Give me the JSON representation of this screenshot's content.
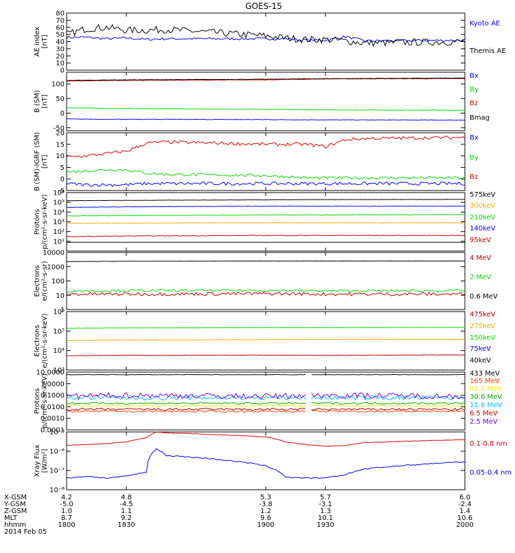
{
  "figure": {
    "title": "GOES-15",
    "date_label": "2014 Feb 05"
  },
  "x_axis": {
    "range": [
      1800,
      2000
    ],
    "ticks_hhmm": [
      "1800",
      "1830",
      "1900",
      "1930",
      "2000"
    ],
    "rows": [
      {
        "label": "X-GSM",
        "values": [
          "4.2",
          "4.8",
          "5.3",
          "5.7",
          "6.0"
        ]
      },
      {
        "label": "Y-GSM",
        "values": [
          "-5.0",
          "-4.5",
          "-3.8",
          "-3.1",
          "-2.4"
        ]
      },
      {
        "label": "Z-GSM",
        "values": [
          "1.0",
          "1.1",
          "1.2",
          "1.3",
          "1.4"
        ]
      },
      {
        "label": "MLT",
        "values": [
          "8.7",
          "9.2",
          "9.6",
          "10.1",
          "10.6"
        ]
      },
      {
        "label": "hhmm",
        "values": [
          "1800",
          "1830",
          "1900",
          "1930",
          "2000"
        ]
      }
    ]
  },
  "colors": {
    "black": "#000000",
    "blue": "#0000ff",
    "green": "#00dd00",
    "red": "#dd0000",
    "orange": "#ffaa00",
    "yellow": "#eeee00",
    "cyan": "#00bbff",
    "purple": "#7700cc",
    "darkred": "#bb0000",
    "orangered": "#ff4400",
    "darkgreen": "#00aa00"
  },
  "chart_data": [
    {
      "type": "line",
      "ylabel": [
        "AE index",
        "[nT]"
      ],
      "scale": "linear",
      "ylim": [
        0,
        80
      ],
      "yticks": [
        {
          "v": 0,
          "t": "0"
        },
        {
          "v": 10,
          "t": "10"
        },
        {
          "v": 20,
          "t": "20"
        },
        {
          "v": 30,
          "t": "30"
        },
        {
          "v": 40,
          "t": "40"
        },
        {
          "v": 50,
          "t": "50"
        },
        {
          "v": 60,
          "t": "60"
        },
        {
          "v": 70,
          "t": "70"
        },
        {
          "v": 80,
          "t": "80"
        }
      ],
      "x": [
        1800,
        1810,
        1820,
        1830,
        1840,
        1850,
        1900,
        1910,
        1920,
        1930,
        1940,
        1950,
        2000
      ],
      "series": [
        {
          "name": "Kyoto AE",
          "color": "blue",
          "values": [
            46,
            46,
            44,
            45,
            43,
            44,
            44,
            44,
            42,
            42,
            47,
            41,
            42
          ],
          "noise": 0.9
        },
        {
          "name": "Themis AE",
          "color": "black",
          "values": [
            50,
            58,
            60,
            56,
            56,
            57,
            48,
            45,
            43,
            43,
            41,
            38,
            40
          ],
          "noise": 2.5
        }
      ]
    },
    {
      "type": "line",
      "ylabel": [
        "B (SM)",
        "[nT]"
      ],
      "scale": "linear",
      "ylim": [
        -60,
        140
      ],
      "yticks": [
        {
          "v": -50,
          "t": "-50"
        },
        {
          "v": 0,
          "t": "0"
        },
        {
          "v": 50,
          "t": "50"
        },
        {
          "v": 100,
          "t": "100"
        }
      ],
      "x": [
        1800,
        1830,
        1900,
        1930,
        2000
      ],
      "series": [
        {
          "name": "Bx",
          "color": "blue",
          "values": [
            -20,
            -21,
            -22,
            -23,
            -24
          ],
          "noise": 0.4
        },
        {
          "name": "By",
          "color": "green",
          "values": [
            18,
            16,
            13,
            11,
            10
          ],
          "noise": 0.4
        },
        {
          "name": "Bz",
          "color": "red",
          "values": [
            110,
            112,
            114,
            117,
            118
          ],
          "noise": 0.3
        },
        {
          "name": "Bmag",
          "color": "black",
          "values": [
            112,
            114,
            116,
            118,
            120
          ],
          "noise": 0.3
        }
      ]
    },
    {
      "type": "line",
      "ylabel": [
        "B (SM)-IGRF (SM)",
        "[nT]"
      ],
      "scale": "linear",
      "ylim": [
        -5,
        20
      ],
      "yticks": [
        {
          "v": -5,
          "t": "-5"
        },
        {
          "v": 0,
          "t": "0"
        },
        {
          "v": 5,
          "t": "5"
        },
        {
          "v": 10,
          "t": "10"
        },
        {
          "v": 15,
          "t": "15"
        },
        {
          "v": 20,
          "t": "20"
        }
      ],
      "x": [
        1800,
        1810,
        1820,
        1830,
        1840,
        1850,
        1900,
        1910,
        1920,
        1930,
        1940,
        1950,
        2000
      ],
      "series": [
        {
          "name": "Bx",
          "color": "blue",
          "values": [
            -2,
            -2.5,
            -2.5,
            -2.5,
            -2,
            -2,
            -2,
            -2,
            -2,
            -2,
            -2,
            -2,
            -2
          ],
          "noise": 0.35
        },
        {
          "name": "By",
          "color": "green",
          "values": [
            3,
            3.5,
            4,
            4,
            2.5,
            2,
            1.5,
            1,
            0.5,
            0.5,
            0.5,
            0.5,
            0.5
          ],
          "noise": 0.3
        },
        {
          "name": "Bz",
          "color": "red",
          "values": [
            9.5,
            10,
            11,
            12,
            15.5,
            16,
            15,
            15,
            15,
            14,
            17,
            17.5,
            18
          ],
          "noise": 0.35
        }
      ]
    },
    {
      "type": "line",
      "ylabel": [
        "Protons",
        "p/(cm²-s-sr-keV)"
      ],
      "scale": "log",
      "ylim": [
        1,
        1000000
      ],
      "yticks": [
        {
          "v": 10,
          "t": "10¹"
        },
        {
          "v": 100,
          "t": "10²"
        },
        {
          "v": 1000,
          "t": "10³"
        },
        {
          "v": 10000,
          "t": "10⁴"
        },
        {
          "v": 100000,
          "t": "10⁵"
        },
        {
          "v": 1000000,
          "t": "10⁶"
        }
      ],
      "x": [
        1800,
        1830,
        1900,
        1930,
        2000
      ],
      "series": [
        {
          "name": "575keV",
          "color": "black",
          "values": [
            8,
            8,
            8,
            8,
            8
          ],
          "noise": 0
        },
        {
          "name": "300keV",
          "color": "orange",
          "values": [
            700,
            750,
            800,
            800,
            800
          ],
          "noise": 0.02
        },
        {
          "name": "210keV",
          "color": "green",
          "values": [
            4000,
            4500,
            5000,
            5000,
            5500
          ],
          "noise": 0.02
        },
        {
          "name": "140keV",
          "color": "blue",
          "values": [
            30000,
            35000,
            40000,
            40000,
            40000
          ],
          "noise": 0.02
        },
        {
          "name": "95keV",
          "color": "darkred",
          "values": [
            30,
            35,
            40,
            40,
            40
          ],
          "noise": 0.03
        }
      ],
      "extra_series": [
        {
          "color": "black",
          "values": [
            150000,
            160000,
            180000,
            190000,
            200000
          ],
          "noise": 0.01
        }
      ]
    },
    {
      "type": "line",
      "ylabel": [
        "Electrons",
        "e/(cm²-s-sr)"
      ],
      "scale": "log",
      "ylim": [
        1,
        10000
      ],
      "yticks": [
        {
          "v": 1,
          "t": "1"
        },
        {
          "v": 10,
          "t": "10"
        },
        {
          "v": 100,
          "t": "100"
        },
        {
          "v": 1000,
          "t": "1000"
        },
        {
          "v": 10000,
          "t": "10000"
        }
      ],
      "x": [
        1800,
        1830,
        1900,
        1930,
        2000
      ],
      "series": [
        {
          "name": "4 MeV",
          "color": "darkred",
          "values": [
            12,
            12,
            13,
            12,
            12
          ],
          "noise": 0.12
        },
        {
          "name": "2 MeV",
          "color": "green",
          "values": [
            20,
            21,
            22,
            20,
            21
          ],
          "noise": 0.08
        },
        {
          "name": "0.6 MeV",
          "color": "black",
          "values": [
            2300,
            2400,
            2500,
            2500,
            2500
          ],
          "noise": 0.005
        }
      ]
    },
    {
      "type": "line",
      "ylabel": [
        "Electrons",
        "e/(cm²-s-sr-keV)"
      ],
      "scale": "log",
      "ylim": [
        1000,
        1000000
      ],
      "yticks": [
        {
          "v": 1000,
          "t": "10³"
        },
        {
          "v": 10000,
          "t": "10⁴"
        },
        {
          "v": 100000,
          "t": "10⁵"
        },
        {
          "v": 1000000,
          "t": "10⁶"
        }
      ],
      "x": [
        1800,
        1830,
        1900,
        1930,
        2000
      ],
      "series": [
        {
          "name": "475keV",
          "color": "darkred",
          "values": [
            5500,
            5700,
            5800,
            5700,
            6000
          ],
          "noise": 0.01
        },
        {
          "name": "275keV",
          "color": "orange",
          "values": [
            33000,
            35000,
            36000,
            37000,
            38000
          ],
          "noise": 0.005
        },
        {
          "name": "150keV",
          "color": "green",
          "values": [
            140000,
            145000,
            150000,
            150000,
            155000
          ],
          "noise": 0.005
        },
        {
          "name": "75keV",
          "color": "blue",
          "values": [
            null,
            null,
            null,
            null,
            null
          ],
          "noise": 0
        },
        {
          "name": "40keV",
          "color": "black",
          "values": [
            null,
            null,
            null,
            null,
            null
          ],
          "noise": 0
        }
      ]
    },
    {
      "type": "line",
      "ylabel": [
        "Protons",
        "p/(cm²-s-sr-keV)"
      ],
      "scale": "log",
      "ylim": [
        0.0001,
        10
      ],
      "yticks": [
        {
          "v": 0.0001,
          "t": "0.0001"
        },
        {
          "v": 0.001,
          "t": "0.0010"
        },
        {
          "v": 0.01,
          "t": "0.0100"
        },
        {
          "v": 0.1,
          "t": "0.1000"
        },
        {
          "v": 1,
          "t": "1.0000"
        },
        {
          "v": 10,
          "t": "10.0000"
        }
      ],
      "x": [
        1800,
        1830,
        1900,
        1930,
        2000
      ],
      "series": [
        {
          "name": "433 MeV",
          "color": "black",
          "values": [
            6,
            6,
            6,
            6,
            6
          ],
          "noise": 0.02
        },
        {
          "name": "165 MeV",
          "color": "orangered",
          "values": [
            0.004,
            0.004,
            0.004,
            0.004,
            0.004
          ],
          "noise": 0.08
        },
        {
          "name": "63.1 MeV",
          "color": "yellow",
          "values": [
            0.012,
            0.012,
            0.012,
            0.012,
            0.012
          ],
          "noise": 0.06
        },
        {
          "name": "30.6 MeV",
          "color": "darkgreen",
          "values": [
            0.02,
            0.02,
            0.02,
            0.02,
            0.02
          ],
          "noise": 0.08
        },
        {
          "name": "11.6 MeV",
          "color": "cyan",
          "values": [
            0.06,
            0.06,
            0.06,
            0.06,
            0.06
          ],
          "noise": 0.2
        },
        {
          "name": "6.5 MeV",
          "color": "darkred",
          "values": [
            0.006,
            0.006,
            0.006,
            0.006,
            0.006
          ],
          "noise": 0.1
        },
        {
          "name": "2.5 MeV",
          "color": "purple",
          "values": [
            0.08,
            0.1,
            0.08,
            0.1,
            0.08
          ],
          "noise": 0.25
        }
      ]
    },
    {
      "type": "line",
      "ylabel": [
        "Xray Flux",
        "[W/m²]"
      ],
      "scale": "log",
      "ylim": [
        1e-08,
        1e-05
      ],
      "yticks": [
        {
          "v": 1e-08,
          "t": "10⁻⁸"
        },
        {
          "v": 1e-07,
          "t": "10⁻⁷"
        },
        {
          "v": 1e-06,
          "t": "10⁻⁶"
        },
        {
          "v": 1e-05,
          "t": "10⁻⁵"
        }
      ],
      "x": [
        1800,
        1810,
        1820,
        1830,
        1840,
        1845,
        1850,
        1900,
        1910,
        1920,
        1930,
        1940,
        1950,
        2000
      ],
      "series": [
        {
          "name": "0.1-0.8 nm",
          "color": "red",
          "values": [
            2e-06,
            2.2e-06,
            2.5e-06,
            3e-06,
            5e-06,
            1e-05,
            9e-06,
            5.5e-06,
            3e-06,
            2.2e-06,
            1.8e-06,
            2e-06,
            2.8e-06,
            4e-06
          ],
          "noise": 0.01
        },
        {
          "name": "0.05-0.4 nm",
          "color": "blue",
          "values": [
            4e-08,
            5e-08,
            4e-08,
            5e-08,
            8e-08,
            1.3e-06,
            6e-07,
            1.7e-07,
            4.5e-08,
            4e-08,
            4e-08,
            6e-08,
            1.2e-07,
            2.8e-07
          ],
          "noise": 0.03
        }
      ]
    }
  ]
}
